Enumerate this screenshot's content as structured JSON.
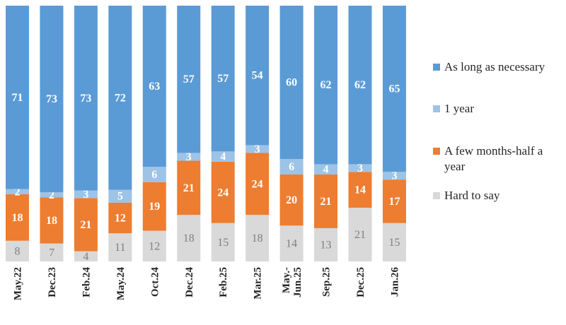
{
  "chart_data": {
    "type": "stacked-bar",
    "categories": [
      "May.22",
      "Dec.23",
      "Feb.24",
      "May.24",
      "Oct.24",
      "Dec.24",
      "Feb.25",
      "Mar.25",
      "May.-Jun.25",
      "Sep.25",
      "Dec.25",
      "Jan.26"
    ],
    "category_lines": [
      [
        "May.22"
      ],
      [
        "Dec.23"
      ],
      [
        "Feb.24"
      ],
      [
        "May.24"
      ],
      [
        "Oct.24"
      ],
      [
        "Dec.24"
      ],
      [
        "Feb.25"
      ],
      [
        "Mar.25"
      ],
      [
        "May.-",
        "Jun.25"
      ],
      [
        "Sep.25"
      ],
      [
        "Dec.25"
      ],
      [
        "Jan.26"
      ]
    ],
    "series": [
      {
        "name": "Hard to say",
        "color": "#d9d9d9",
        "label_color": "#7f7f7f",
        "values": [
          8,
          7,
          4,
          11,
          12,
          18,
          15,
          18,
          14,
          13,
          21,
          15
        ]
      },
      {
        "name": "A few months-half a year",
        "color": "#ed7d31",
        "label_color": "#ffffff",
        "values": [
          18,
          18,
          21,
          12,
          19,
          21,
          24,
          24,
          20,
          21,
          14,
          17
        ]
      },
      {
        "name": "1 year",
        "color": "#9dc3e6",
        "label_color": "#ffffff",
        "values": [
          2,
          2,
          3,
          5,
          6,
          3,
          4,
          3,
          6,
          4,
          3,
          3
        ]
      },
      {
        "name": "As long as necessary",
        "color": "#5b9bd5",
        "label_color": "#ffffff",
        "values": [
          71,
          73,
          73,
          72,
          63,
          57,
          57,
          54,
          60,
          62,
          62,
          65
        ]
      }
    ],
    "ylim": [
      0,
      100
    ],
    "legend_position": "right"
  },
  "legend": [
    {
      "label": "As long as necessary",
      "color": "#5b9bd5"
    },
    {
      "label": "1 year",
      "color": "#9dc3e6"
    },
    {
      "label": "A few months-half a year",
      "color": "#ed7d31"
    },
    {
      "label": "Hard to say",
      "color": "#d9d9d9"
    }
  ]
}
